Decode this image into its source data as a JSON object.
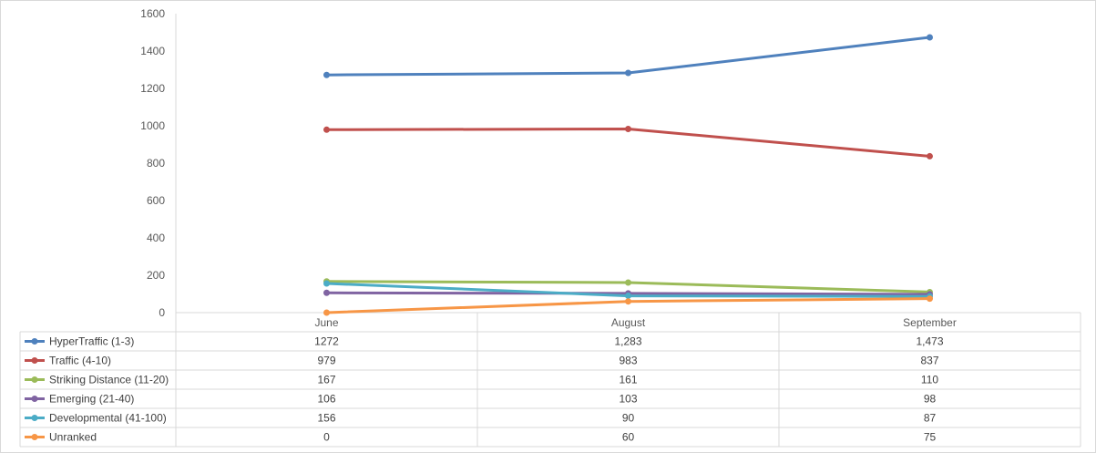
{
  "chart_data": {
    "type": "line",
    "categories": [
      "June",
      "August",
      "September"
    ],
    "ylim": [
      0,
      1600
    ],
    "yticks": [
      0,
      200,
      400,
      600,
      800,
      1000,
      1200,
      1400,
      1600
    ],
    "grid": false,
    "legend": "data-table-left",
    "series": [
      {
        "name": "HyperTraffic (1-3)",
        "color": "#4f81bd",
        "values": [
          1272,
          1283,
          1473
        ],
        "labels": [
          "1272",
          "1,283",
          "1,473"
        ]
      },
      {
        "name": "Traffic (4-10)",
        "color": "#c0504d",
        "values": [
          979,
          983,
          837
        ],
        "labels": [
          "979",
          "983",
          "837"
        ]
      },
      {
        "name": "Striking Distance (11-20)",
        "color": "#9bbb59",
        "values": [
          167,
          161,
          110
        ],
        "labels": [
          "167",
          "161",
          "110"
        ]
      },
      {
        "name": "Emerging (21-40)",
        "color": "#8064a2",
        "values": [
          106,
          103,
          98
        ],
        "labels": [
          "106",
          "103",
          "98"
        ]
      },
      {
        "name": "Developmental (41-100)",
        "color": "#4bacc6",
        "values": [
          156,
          90,
          87
        ],
        "labels": [
          "156",
          "90",
          "87"
        ]
      },
      {
        "name": "Unranked",
        "color": "#f79646",
        "values": [
          0,
          60,
          75
        ],
        "labels": [
          "0",
          "60",
          "75"
        ]
      }
    ]
  }
}
